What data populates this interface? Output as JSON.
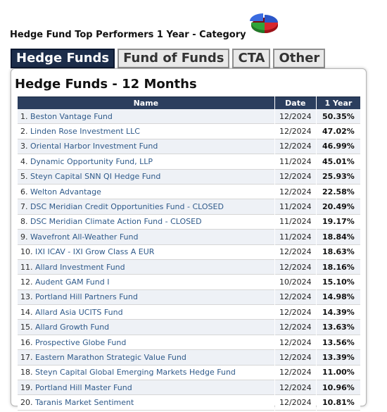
{
  "page_title": "Hedge Fund Top Performers 1 Year - Category",
  "tabs": [
    {
      "label": "Hedge Funds",
      "active": true
    },
    {
      "label": "Fund of Funds",
      "active": false
    },
    {
      "label": "CTA",
      "active": false
    },
    {
      "label": "Other",
      "active": false
    }
  ],
  "logo_icon": "pie-chart-icon",
  "colors": {
    "header": "#2b3e5e",
    "active_tab": "#1c2d4a",
    "link": "#2f5a8a"
  },
  "panel": {
    "title": "Hedge Funds - 12 Months",
    "columns": {
      "name": "Name",
      "date": "Date",
      "return": "1 Year"
    },
    "rows": [
      {
        "rank": "1.",
        "name": "Beston Vantage Fund",
        "date": "12/2024",
        "ret": "50.35%"
      },
      {
        "rank": "2.",
        "name": "Linden Rose Investment LLC",
        "date": "12/2024",
        "ret": "47.02%"
      },
      {
        "rank": "3.",
        "name": "Oriental Harbor Investment Fund",
        "date": "12/2024",
        "ret": "46.99%"
      },
      {
        "rank": "4.",
        "name": "Dynamic Opportunity Fund, LLP",
        "date": "11/2024",
        "ret": "45.01%"
      },
      {
        "rank": "5.",
        "name": "Steyn Capital SNN QI Hedge Fund",
        "date": "12/2024",
        "ret": "25.93%"
      },
      {
        "rank": "6.",
        "name": "Welton Advantage",
        "date": "12/2024",
        "ret": "22.58%"
      },
      {
        "rank": "7.",
        "name": "DSC Meridian Credit Opportunities Fund - CLOSED",
        "date": "11/2024",
        "ret": "20.49%"
      },
      {
        "rank": "8.",
        "name": "DSC Meridian Climate Action Fund - CLOSED",
        "date": "11/2024",
        "ret": "19.17%"
      },
      {
        "rank": "9.",
        "name": "Wavefront All-Weather Fund",
        "date": "11/2024",
        "ret": "18.84%"
      },
      {
        "rank": "10.",
        "name": "IXI ICAV - IXI Grow Class A EUR",
        "date": "12/2024",
        "ret": "18.63%"
      },
      {
        "rank": "11.",
        "name": "Allard Investment Fund",
        "date": "12/2024",
        "ret": "18.16%"
      },
      {
        "rank": "12.",
        "name": "Audent GAM Fund I",
        "date": "10/2024",
        "ret": "15.10%"
      },
      {
        "rank": "13.",
        "name": "Portland Hill Partners Fund",
        "date": "12/2024",
        "ret": "14.98%"
      },
      {
        "rank": "14.",
        "name": "Allard Asia UCITS Fund",
        "date": "12/2024",
        "ret": "14.39%"
      },
      {
        "rank": "15.",
        "name": "Allard Growth Fund",
        "date": "12/2024",
        "ret": "13.63%"
      },
      {
        "rank": "16.",
        "name": "Prospective Globe Fund",
        "date": "12/2024",
        "ret": "13.56%"
      },
      {
        "rank": "17.",
        "name": "Eastern Marathon Strategic Value Fund",
        "date": "12/2024",
        "ret": "13.39%"
      },
      {
        "rank": "18.",
        "name": "Steyn Capital Global Emerging Markets Hedge Fund",
        "date": "12/2024",
        "ret": "11.00%"
      },
      {
        "rank": "19.",
        "name": "Portland Hill Master Fund",
        "date": "12/2024",
        "ret": "10.96%"
      },
      {
        "rank": "20.",
        "name": "Taranis Market Sentiment",
        "date": "12/2024",
        "ret": "10.81%"
      }
    ]
  }
}
